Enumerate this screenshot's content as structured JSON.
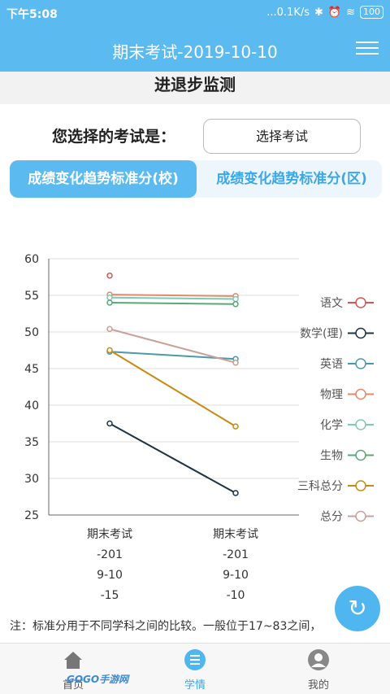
{
  "status_bar": {
    "time": "下午5:08",
    "net_speed": "...0.1K/s",
    "battery": "100"
  },
  "header": {
    "title": "期末考试-2019-10-10"
  },
  "sub_header": {
    "title": "进退步监测"
  },
  "exam_select": {
    "label": "您选择的考试是：",
    "button_label": "选择考试"
  },
  "tabs": [
    {
      "label": "成绩变化趋势标准分(校)",
      "active": true
    },
    {
      "label": "成绩变化趋势标准分(区)",
      "active": false
    }
  ],
  "chart_data": {
    "type": "line",
    "ylim": [
      25,
      60
    ],
    "yticks": [
      25,
      30,
      35,
      40,
      45,
      50,
      55,
      60
    ],
    "categories": [
      {
        "lines": [
          "期末考试",
          "-201",
          "9-10",
          "-15"
        ]
      },
      {
        "lines": [
          "期末考试",
          "-201",
          "9-10",
          "-10"
        ]
      }
    ],
    "series": [
      {
        "name": "语文",
        "color": "#d9534f",
        "values": [
          57.7,
          null
        ]
      },
      {
        "name": "数学(理)",
        "color": "#1c3344",
        "values": [
          37.5,
          28.0
        ]
      },
      {
        "name": "英语",
        "color": "#4a9aa8",
        "values": [
          47.3,
          46.3
        ]
      },
      {
        "name": "物理",
        "color": "#e08a6a",
        "values": [
          55.1,
          54.9
        ]
      },
      {
        "name": "化学",
        "color": "#7fcab0",
        "values": [
          54.7,
          54.5
        ]
      },
      {
        "name": "生物",
        "color": "#5aa878",
        "values": [
          54.0,
          53.8
        ]
      },
      {
        "name": "三科总分",
        "color": "#c88a12",
        "values": [
          47.5,
          37.1
        ]
      },
      {
        "name": "总分",
        "color": "#c9a09a",
        "values": [
          50.4,
          45.8
        ]
      }
    ],
    "grid": true,
    "legend_position": "right"
  },
  "note": {
    "text": "注：标准分用于不同学科之间的比较。一般位于17~83之间，"
  },
  "bottom_nav": {
    "items": [
      {
        "label": "首页",
        "icon": "home-icon",
        "active": false
      },
      {
        "label": "学情",
        "icon": "list-icon",
        "active": true
      },
      {
        "label": "我的",
        "icon": "user-icon",
        "active": false
      }
    ]
  },
  "watermark": {
    "text": "GOGO手游网"
  },
  "colors": {
    "accent": "#5bbaf0",
    "tab_inactive_text": "#3aa8e8"
  }
}
